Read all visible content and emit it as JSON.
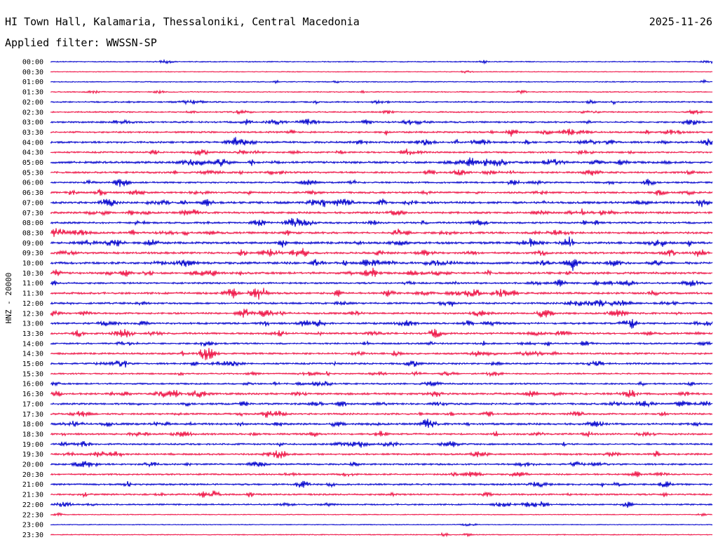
{
  "header": {
    "station": "HI Town Hall, Kalamaria, Thessaloniki, Central Macedonia",
    "date": "2025-11-26",
    "filter": "Applied filter: WWSSN-SP"
  },
  "chart_data": {
    "type": "line",
    "title": "HI Town Hall, Kalamaria, Thessaloniki, Central Macedonia",
    "subtitle": "Applied filter: WWSSN-SP",
    "ylabel": "HNZ - 20000",
    "xlabel": "",
    "grid": false,
    "colors": [
      "#0000cc",
      "#ee1144"
    ],
    "traces": [
      {
        "time": "00:00",
        "activity": 0.15
      },
      {
        "time": "00:30",
        "activity": 0.05
      },
      {
        "time": "01:00",
        "activity": 0.15
      },
      {
        "time": "01:30",
        "activity": 0.2
      },
      {
        "time": "02:00",
        "activity": 0.4
      },
      {
        "time": "02:30",
        "activity": 0.35
      },
      {
        "time": "03:00",
        "activity": 0.55
      },
      {
        "time": "03:30",
        "activity": 0.6
      },
      {
        "time": "04:00",
        "activity": 0.7
      },
      {
        "time": "04:30",
        "activity": 0.55
      },
      {
        "time": "05:00",
        "activity": 0.85
      },
      {
        "time": "05:30",
        "activity": 0.65
      },
      {
        "time": "06:00",
        "activity": 0.55
      },
      {
        "time": "06:30",
        "activity": 0.65
      },
      {
        "time": "07:00",
        "activity": 0.85
      },
      {
        "time": "07:30",
        "activity": 0.75
      },
      {
        "time": "08:00",
        "activity": 0.65
      },
      {
        "time": "08:30",
        "activity": 0.8
      },
      {
        "time": "09:00",
        "activity": 0.85
      },
      {
        "time": "09:30",
        "activity": 0.75
      },
      {
        "time": "10:00",
        "activity": 0.9
      },
      {
        "time": "10:30",
        "activity": 0.8
      },
      {
        "time": "11:00",
        "activity": 0.6
      },
      {
        "time": "11:30",
        "activity": 0.75
      },
      {
        "time": "12:00",
        "activity": 0.65
      },
      {
        "time": "12:30",
        "activity": 0.65
      },
      {
        "time": "13:00",
        "activity": 0.7
      },
      {
        "time": "13:30",
        "activity": 0.7
      },
      {
        "time": "14:00",
        "activity": 0.55
      },
      {
        "time": "14:30",
        "activity": 0.6
      },
      {
        "time": "15:00",
        "activity": 0.6
      },
      {
        "time": "15:30",
        "activity": 0.45
      },
      {
        "time": "16:00",
        "activity": 0.5
      },
      {
        "time": "16:30",
        "activity": 0.75
      },
      {
        "time": "17:00",
        "activity": 0.65
      },
      {
        "time": "17:30",
        "activity": 0.6
      },
      {
        "time": "18:00",
        "activity": 0.75
      },
      {
        "time": "18:30",
        "activity": 0.6
      },
      {
        "time": "19:00",
        "activity": 0.55
      },
      {
        "time": "19:30",
        "activity": 0.6
      },
      {
        "time": "20:00",
        "activity": 0.55
      },
      {
        "time": "20:30",
        "activity": 0.5
      },
      {
        "time": "21:00",
        "activity": 0.6
      },
      {
        "time": "21:30",
        "activity": 0.55
      },
      {
        "time": "22:00",
        "activity": 0.45
      },
      {
        "time": "22:30",
        "activity": 0.1
      },
      {
        "time": "23:00",
        "activity": 0.05
      },
      {
        "time": "23:30",
        "activity": 0.15
      }
    ]
  }
}
